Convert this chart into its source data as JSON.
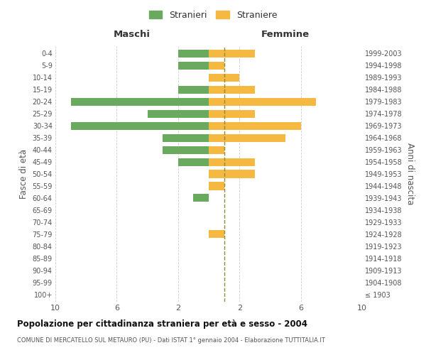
{
  "age_groups": [
    "100+",
    "95-99",
    "90-94",
    "85-89",
    "80-84",
    "75-79",
    "70-74",
    "65-69",
    "60-64",
    "55-59",
    "50-54",
    "45-49",
    "40-44",
    "35-39",
    "30-34",
    "25-29",
    "20-24",
    "15-19",
    "10-14",
    "5-9",
    "0-4"
  ],
  "birth_years": [
    "≤ 1903",
    "1904-1908",
    "1909-1913",
    "1914-1918",
    "1919-1923",
    "1924-1928",
    "1929-1933",
    "1934-1938",
    "1939-1943",
    "1944-1948",
    "1949-1953",
    "1954-1958",
    "1959-1963",
    "1964-1968",
    "1969-1973",
    "1974-1978",
    "1979-1983",
    "1984-1988",
    "1989-1993",
    "1994-1998",
    "1999-2003"
  ],
  "males": [
    0,
    0,
    0,
    0,
    0,
    0,
    0,
    0,
    1,
    0,
    0,
    2,
    3,
    3,
    9,
    4,
    9,
    2,
    0,
    2,
    2
  ],
  "females": [
    0,
    0,
    0,
    0,
    0,
    1,
    0,
    0,
    0,
    1,
    3,
    3,
    1,
    5,
    6,
    3,
    7,
    3,
    2,
    1,
    3
  ],
  "male_color": "#6aaa5e",
  "female_color": "#f5b942",
  "dashed_line_color": "#8b8b3a",
  "grid_color": "#cccccc",
  "title": "Popolazione per cittadinanza straniera per età e sesso - 2004",
  "subtitle": "COMUNE DI MERCATELLO SUL METAURO (PU) - Dati ISTAT 1° gennaio 2004 - Elaborazione TUTTITALIA.IT",
  "ylabel_left": "Fasce di età",
  "ylabel_right": "Anni di nascita",
  "xlabel_left": "Maschi",
  "xlabel_right": "Femmine",
  "legend_male": "Stranieri",
  "legend_female": "Straniere",
  "bg_color": "#ffffff"
}
